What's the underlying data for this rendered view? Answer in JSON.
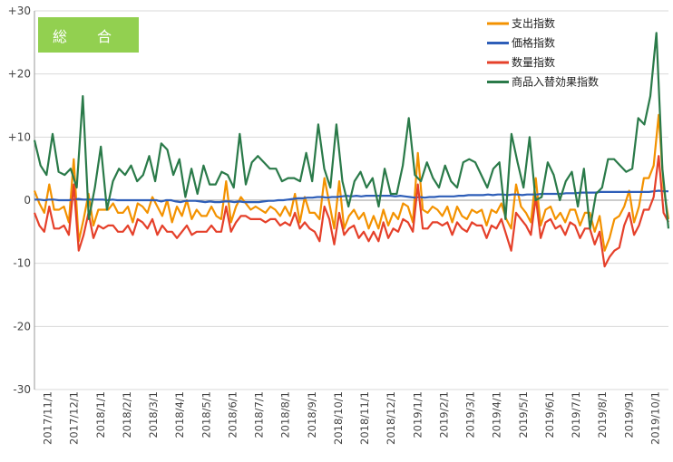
{
  "chart_data": {
    "type": "line",
    "title": "総 合",
    "ylim": [
      -30,
      30
    ],
    "y_ticks": [
      {
        "value": 30,
        "label": "+30"
      },
      {
        "value": 20,
        "label": "+20"
      },
      {
        "value": 10,
        "label": "+10"
      },
      {
        "value": 0,
        "label": "0"
      },
      {
        "value": -10,
        "label": "-10"
      },
      {
        "value": -20,
        "label": "-20"
      },
      {
        "value": -30,
        "label": "-30"
      }
    ],
    "x_tick_labels": [
      "2017/11/1",
      "2017/12/1",
      "2018/1/1",
      "2018/2/1",
      "2018/3/1",
      "2018/4/1",
      "2018/5/1",
      "2018/6/1",
      "2018/7/1",
      "2018/8/1",
      "2018/9/1",
      "2018/10/1",
      "2018/11/1",
      "2018/12/1",
      "2019/1/1",
      "2019/2/1",
      "2019/3/1",
      "2019/4/1",
      "2019/5/1",
      "2019/6/1",
      "2019/7/1",
      "2019/8/1",
      "2019/9/1",
      "2019/10/1"
    ],
    "grid": "horizontal",
    "legend_position": "top-right",
    "series": [
      {
        "name": "支出指数",
        "color": "#f39200",
        "values": [
          1.5,
          -0.5,
          -2.0,
          2.5,
          -1.5,
          -1.5,
          -1.0,
          -3.5,
          6.5,
          -6.5,
          -3.0,
          1.0,
          -4.0,
          -1.5,
          -1.5,
          -1.5,
          -0.5,
          -2.0,
          -2.0,
          -1.0,
          -3.5,
          -0.5,
          -1.0,
          -2.0,
          0.5,
          -1.0,
          -2.5,
          0.0,
          -3.5,
          -1.0,
          -2.5,
          0.0,
          -3.0,
          -1.5,
          -2.5,
          -2.5,
          -1.0,
          -2.5,
          -3.0,
          3.0,
          -3.5,
          -1.0,
          0.5,
          -0.5,
          -1.5,
          -1.0,
          -1.5,
          -2.0,
          -1.0,
          -1.5,
          -2.5,
          -1.0,
          -2.5,
          1.0,
          -3.5,
          0.5,
          -2.0,
          -2.0,
          -3.0,
          3.5,
          -0.5,
          -4.5,
          3.0,
          -4.5,
          -2.5,
          -1.5,
          -3.0,
          -2.0,
          -4.5,
          -2.5,
          -4.5,
          -1.5,
          -4.0,
          -2.0,
          -3.0,
          -0.5,
          -1.0,
          -3.5,
          7.5,
          -1.5,
          -2.0,
          -1.0,
          -1.5,
          -2.5,
          -1.0,
          -3.5,
          -1.0,
          -2.5,
          -3.0,
          -1.5,
          -2.0,
          -1.5,
          -4.0,
          -1.5,
          -2.0,
          -0.5,
          -3.0,
          -4.5,
          2.5,
          -1.0,
          -2.0,
          -3.5,
          3.5,
          -4.0,
          -1.5,
          -1.0,
          -3.0,
          -2.0,
          -3.5,
          -1.5,
          -1.5,
          -4.0,
          -2.0,
          -2.0,
          -5.0,
          -2.5,
          -8.0,
          -6.0,
          -3.0,
          -2.5,
          -1.0,
          1.5,
          -3.5,
          -1.0,
          3.5,
          3.5,
          5.5,
          13.5,
          2.0,
          -3.0
        ],
        "style": "line"
      },
      {
        "name": "価格指数",
        "color": "#2e5eb8",
        "values": [
          0.1,
          0.1,
          0.0,
          0.1,
          0.1,
          0.0,
          0.0,
          0.0,
          0.1,
          0.2,
          0.1,
          0.1,
          0.1,
          0.1,
          0.1,
          0.0,
          0.1,
          0.0,
          0.0,
          0.0,
          0.0,
          0.0,
          0.0,
          0.0,
          0.0,
          0.0,
          -0.2,
          0.0,
          0.0,
          -0.2,
          -0.3,
          -0.1,
          -0.1,
          -0.1,
          -0.2,
          -0.3,
          -0.2,
          -0.3,
          -0.3,
          -0.2,
          -0.2,
          -0.3,
          -0.2,
          -0.3,
          -0.3,
          -0.3,
          -0.3,
          -0.2,
          -0.1,
          -0.1,
          0.0,
          0.0,
          0.1,
          0.2,
          0.3,
          0.3,
          0.4,
          0.4,
          0.5,
          0.5,
          0.4,
          0.5,
          0.5,
          0.6,
          0.7,
          0.6,
          0.7,
          0.6,
          0.7,
          0.7,
          0.7,
          0.7,
          0.7,
          0.7,
          0.6,
          0.7,
          0.6,
          0.5,
          0.4,
          0.5,
          0.4,
          0.5,
          0.5,
          0.6,
          0.6,
          0.6,
          0.6,
          0.7,
          0.7,
          0.8,
          0.8,
          0.8,
          0.8,
          0.9,
          0.8,
          0.9,
          0.9,
          0.8,
          0.9,
          0.9,
          0.8,
          0.9,
          0.9,
          0.9,
          1.0,
          1.0,
          1.0,
          1.0,
          1.0,
          1.1,
          1.1,
          1.1,
          1.2,
          1.2,
          1.2,
          1.2,
          1.3,
          1.3,
          1.3,
          1.3,
          1.3,
          1.3,
          1.3,
          1.3,
          1.3,
          1.3,
          1.3,
          1.4,
          1.5,
          1.4,
          1.4
        ],
        "style": "line"
      },
      {
        "name": "数量指数",
        "color": "#e5402a",
        "values": [
          -2.0,
          -4.0,
          -5.0,
          -1.0,
          -4.5,
          -4.5,
          -4.0,
          -5.5,
          2.5,
          -8.0,
          -5.5,
          -2.0,
          -6.0,
          -4.0,
          -4.5,
          -4.0,
          -4.0,
          -5.0,
          -5.0,
          -4.0,
          -5.5,
          -3.0,
          -3.5,
          -4.5,
          -3.0,
          -5.5,
          -4.0,
          -5.0,
          -5.0,
          -6.0,
          -5.0,
          -4.0,
          -5.5,
          -5.0,
          -5.0,
          -5.0,
          -4.0,
          -5.0,
          -5.0,
          -1.0,
          -5.0,
          -3.5,
          -2.5,
          -2.5,
          -3.0,
          -3.0,
          -3.0,
          -3.5,
          -3.0,
          -3.0,
          -4.0,
          -3.5,
          -4.0,
          -2.0,
          -4.5,
          -3.5,
          -4.5,
          -5.0,
          -6.5,
          -1.0,
          -3.0,
          -7.0,
          -2.0,
          -5.5,
          -4.5,
          -4.0,
          -6.0,
          -5.0,
          -6.5,
          -5.0,
          -6.5,
          -3.5,
          -6.0,
          -4.5,
          -5.0,
          -3.0,
          -3.5,
          -5.0,
          2.5,
          -4.5,
          -4.5,
          -3.5,
          -3.5,
          -4.0,
          -3.5,
          -5.5,
          -3.5,
          -4.5,
          -5.0,
          -3.5,
          -4.0,
          -4.0,
          -6.0,
          -4.0,
          -4.5,
          -3.0,
          -5.5,
          -8.0,
          -2.0,
          -3.0,
          -4.0,
          -5.5,
          0.5,
          -6.0,
          -3.5,
          -3.0,
          -4.5,
          -4.0,
          -5.5,
          -3.5,
          -4.0,
          -6.0,
          -4.5,
          -4.5,
          -7.0,
          -5.0,
          -10.5,
          -9.0,
          -8.0,
          -7.5,
          -4.0,
          -2.0,
          -5.5,
          -4.0,
          -1.5,
          -1.5,
          0.5,
          7.0,
          -2.0,
          -3.5
        ],
        "style": "line"
      },
      {
        "name": "商品入替効果指数",
        "color": "#2a7a49",
        "values": [
          9.5,
          5.5,
          4.0,
          10.5,
          4.5,
          4.0,
          5.0,
          2.0,
          16.5,
          -3.0,
          2.0,
          8.5,
          -1.5,
          3.0,
          5.0,
          4.0,
          5.5,
          3.0,
          4.0,
          7.0,
          3.0,
          9.0,
          8.0,
          4.0,
          6.5,
          0.5,
          5.0,
          1.0,
          5.5,
          2.5,
          2.5,
          4.5,
          4.0,
          2.0,
          10.5,
          2.5,
          6.0,
          7.0,
          6.0,
          5.0,
          5.0,
          3.0,
          3.5,
          3.5,
          3.0,
          7.5,
          3.0,
          12.0,
          5.0,
          2.0,
          12.0,
          3.0,
          -1.0,
          3.0,
          4.5,
          2.0,
          3.5,
          -1.0,
          5.0,
          1.0,
          1.0,
          5.5,
          13.0,
          4.0,
          3.0,
          6.0,
          3.5,
          2.0,
          5.5,
          3.0,
          2.0,
          6.0,
          6.5,
          6.0,
          4.0,
          2.0,
          5.0,
          6.0,
          -3.0,
          10.5,
          6.0,
          2.0,
          10.0,
          0.0,
          0.5,
          6.0,
          4.0,
          0.0,
          3.0,
          4.5,
          -1.0,
          5.0,
          -4.5,
          1.0,
          2.0,
          6.5,
          6.5,
          5.5,
          4.5,
          5.0,
          13.0,
          12.0,
          16.5,
          26.5,
          5.0,
          -4.5
        ],
        "style": "line"
      }
    ]
  }
}
